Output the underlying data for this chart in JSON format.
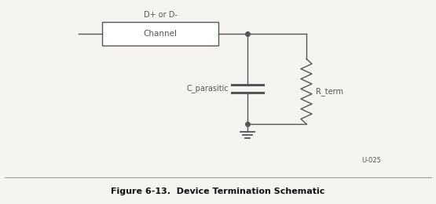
{
  "title": "Figure 6-13.  Device Termination Schematic",
  "label_channel": "Channel",
  "label_d": "D+ or D-",
  "label_c": "C_parasitic",
  "label_r": "R_term",
  "label_ref": "U-025",
  "bg_color": "#f5f4f1",
  "box_color": "#ffffff",
  "line_color": "#555555",
  "title_color": "#111111",
  "fig_width": 5.55,
  "fig_height": 2.6,
  "dpi": 100
}
